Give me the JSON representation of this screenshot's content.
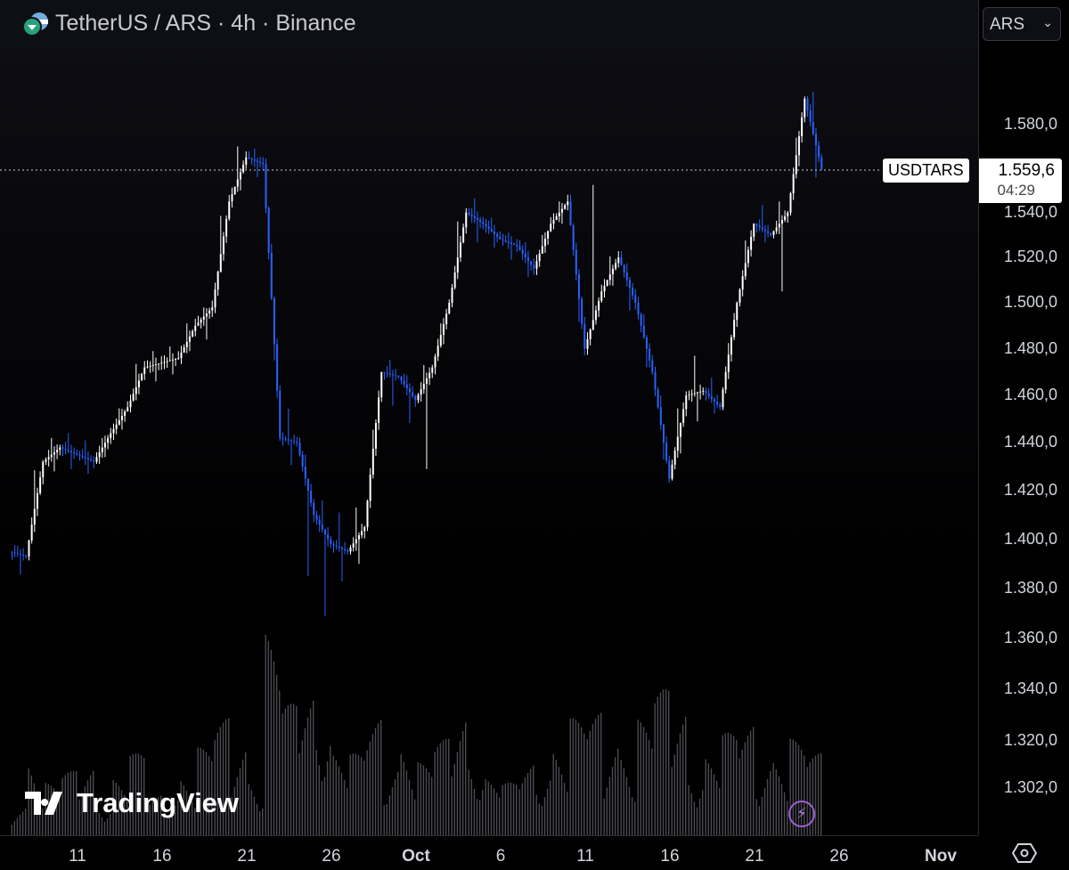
{
  "header": {
    "title": "TetherUS / ARS · 4h · Binance",
    "currency": "ARS"
  },
  "price_tag": {
    "symbol": "USDTARS",
    "price": "1.559,6",
    "countdown": "04:29"
  },
  "logo": "TradingView",
  "colors": {
    "up": "#ffffff",
    "down": "#2962ff",
    "volume": "#4a4a52",
    "background": "#000000"
  },
  "icons": {
    "flash": "lightning-icon",
    "settings": "hexagon-gear-icon"
  },
  "chart_data": {
    "type": "candlestick",
    "interval": "4h",
    "scale": "log",
    "ylim": [
      1290,
      1610
    ],
    "y_ticks": [
      "1.580,0",
      "1.540,0",
      "1.520,0",
      "1.500,0",
      "1.480,0",
      "1.460,0",
      "1.440,0",
      "1.420,0",
      "1.400,0",
      "1.380,0",
      "1.360,0",
      "1.340,0",
      "1.320,0",
      "1.302,0"
    ],
    "y_tick_values": [
      1580,
      1540,
      1520,
      1500,
      1480,
      1460,
      1440,
      1420,
      1400,
      1380,
      1360,
      1340,
      1320,
      1302
    ],
    "x_ticks": [
      "11",
      "16",
      "21",
      "26",
      "Oct",
      "6",
      "11",
      "16",
      "21",
      "26",
      "Nov"
    ],
    "x_tick_dates": [
      "2023-09-11",
      "2023-09-16",
      "2023-09-21",
      "2023-09-26",
      "2023-10-01",
      "2023-10-06",
      "2023-10-11",
      "2023-10-16",
      "2023-10-21",
      "2023-10-26",
      "2023-11-01"
    ],
    "start_date": "2023-09-07",
    "last_price": 1559.6,
    "ohlc": [
      [
        1395,
        1398,
        1385,
        1393
      ],
      [
        1393,
        1448,
        1390,
        1432
      ],
      [
        1432,
        1445,
        1425,
        1438
      ],
      [
        1438,
        1445,
        1428,
        1435
      ],
      [
        1435,
        1442,
        1426,
        1432
      ],
      [
        1432,
        1448,
        1428,
        1444
      ],
      [
        1444,
        1460,
        1440,
        1455
      ],
      [
        1455,
        1482,
        1452,
        1472
      ],
      [
        1472,
        1480,
        1465,
        1474
      ],
      [
        1474,
        1482,
        1468,
        1476
      ],
      [
        1476,
        1498,
        1472,
        1490
      ],
      [
        1490,
        1502,
        1480,
        1498
      ],
      [
        1498,
        1562,
        1495,
        1545
      ],
      [
        1545,
        1580,
        1540,
        1565
      ],
      [
        1565,
        1570,
        1555,
        1562
      ],
      [
        1562,
        1566,
        1435,
        1442
      ],
      [
        1442,
        1455,
        1430,
        1440
      ],
      [
        1440,
        1445,
        1375,
        1410
      ],
      [
        1410,
        1420,
        1365,
        1398
      ],
      [
        1398,
        1412,
        1382,
        1395
      ],
      [
        1395,
        1418,
        1385,
        1405
      ],
      [
        1405,
        1478,
        1402,
        1470
      ],
      [
        1470,
        1476,
        1455,
        1468
      ],
      [
        1468,
        1472,
        1445,
        1458
      ],
      [
        1458,
        1480,
        1422,
        1472
      ],
      [
        1472,
        1505,
        1468,
        1500
      ],
      [
        1500,
        1556,
        1498,
        1540
      ],
      [
        1540,
        1548,
        1525,
        1535
      ],
      [
        1535,
        1540,
        1522,
        1528
      ],
      [
        1528,
        1532,
        1518,
        1525
      ],
      [
        1525,
        1530,
        1508,
        1515
      ],
      [
        1515,
        1540,
        1512,
        1535
      ],
      [
        1535,
        1550,
        1530,
        1545
      ],
      [
        1545,
        1548,
        1470,
        1480
      ],
      [
        1480,
        1565,
        1478,
        1505
      ],
      [
        1505,
        1528,
        1500,
        1520
      ],
      [
        1520,
        1524,
        1490,
        1500
      ],
      [
        1500,
        1505,
        1462,
        1470
      ],
      [
        1470,
        1475,
        1418,
        1425
      ],
      [
        1425,
        1472,
        1418,
        1460
      ],
      [
        1460,
        1478,
        1448,
        1462
      ],
      [
        1462,
        1470,
        1450,
        1455
      ],
      [
        1455,
        1505,
        1452,
        1500
      ],
      [
        1500,
        1545,
        1498,
        1535
      ],
      [
        1535,
        1545,
        1525,
        1530
      ],
      [
        1530,
        1550,
        1500,
        1540
      ],
      [
        1540,
        1600,
        1535,
        1592
      ],
      [
        1592,
        1606,
        1545,
        1559.6
      ]
    ],
    "volume": [
      12,
      30,
      18,
      22,
      25,
      15,
      20,
      28,
      14,
      18,
      22,
      30,
      40,
      35,
      25,
      70,
      45,
      50,
      55,
      30,
      28,
      40,
      30,
      35,
      25,
      33,
      45,
      35,
      20,
      18,
      25,
      30,
      32,
      40,
      42,
      38,
      35,
      40,
      50,
      45,
      30,
      28,
      35,
      38,
      32,
      30,
      33,
      28
    ]
  }
}
